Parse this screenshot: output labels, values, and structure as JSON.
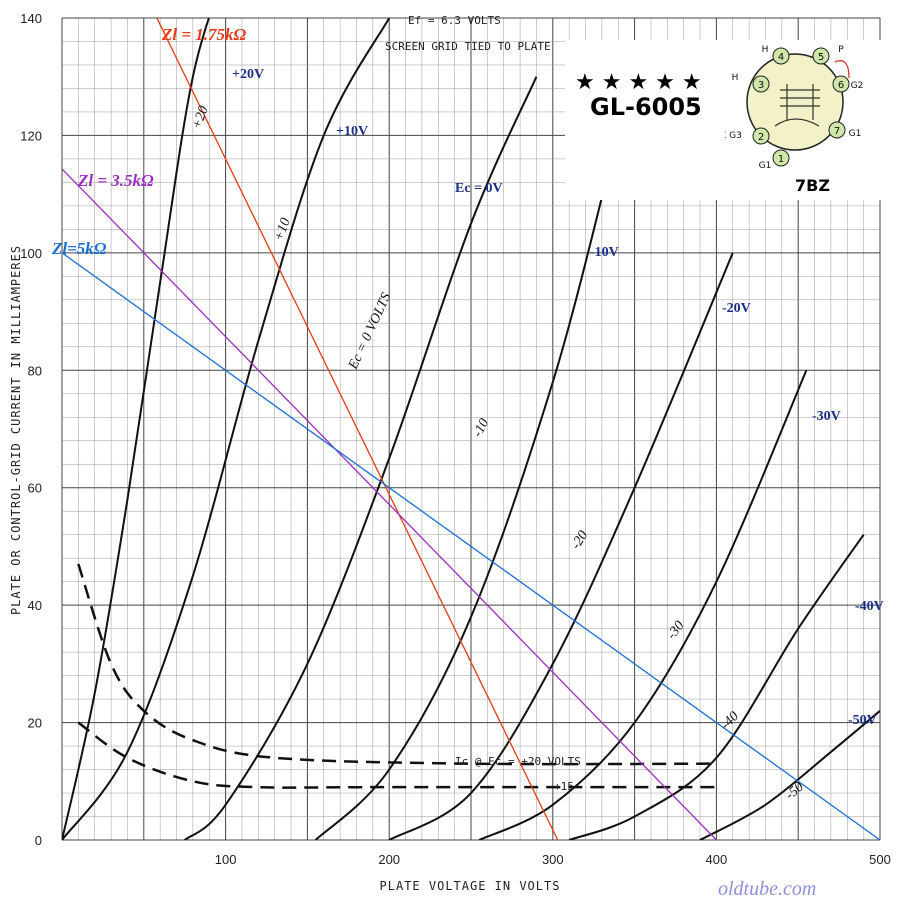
{
  "chart_data": {
    "type": "line",
    "title": "",
    "xlabel": "PLATE VOLTAGE IN VOLTS",
    "ylabel": "PLATE OR CONTROL-GRID CURRENT IN MILLIAMPERES",
    "xlim": [
      0,
      500
    ],
    "ylim": [
      0,
      140
    ],
    "x_ticks": [
      "100",
      "200",
      "300",
      "400",
      "500"
    ],
    "y_ticks": [
      "0",
      "20",
      "40",
      "60",
      "80",
      "100",
      "120",
      "140"
    ],
    "grid": true,
    "notes": [
      "Ef = 6.3 VOLTS",
      "SCREEN GRID TIED TO PLATE"
    ],
    "series": [
      {
        "name": "+20V",
        "inline_label": "+20",
        "x": [
          0,
          20,
          40,
          60,
          80,
          100
        ],
        "y": [
          0,
          25,
          58,
          95,
          130,
          148
        ]
      },
      {
        "name": "+10V",
        "inline_label": "+10",
        "x": [
          0,
          40,
          80,
          120,
          160,
          200
        ],
        "y": [
          0,
          15,
          45,
          85,
          120,
          140
        ]
      },
      {
        "name": "Ec = 0V",
        "inline_label": "Ec = 0 VOLTS",
        "x": [
          75,
          100,
          150,
          200,
          250,
          290
        ],
        "y": [
          0,
          6,
          30,
          65,
          105,
          130
        ]
      },
      {
        "name": "-10V",
        "inline_label": "-10",
        "x": [
          155,
          200,
          250,
          300,
          335
        ],
        "y": [
          0,
          12,
          38,
          78,
          115
        ]
      },
      {
        "name": "-20V",
        "inline_label": "-20",
        "x": [
          200,
          250,
          300,
          350,
          410
        ],
        "y": [
          0,
          8,
          30,
          60,
          100
        ]
      },
      {
        "name": "-30V",
        "inline_label": "-30",
        "x": [
          255,
          300,
          350,
          400,
          455
        ],
        "y": [
          0,
          6,
          20,
          44,
          80
        ]
      },
      {
        "name": "-40V",
        "inline_label": "-40",
        "x": [
          310,
          350,
          400,
          450,
          490
        ],
        "y": [
          0,
          4,
          14,
          36,
          52
        ]
      },
      {
        "name": "-50V",
        "inline_label": "-50",
        "x": [
          390,
          430,
          470,
          500
        ],
        "y": [
          0,
          6,
          15,
          22
        ]
      }
    ],
    "grid_current": [
      {
        "label": "Ic @ Ec = +20 VOLTS",
        "x": [
          10,
          30,
          50,
          80,
          130,
          250,
          400
        ],
        "y": [
          47,
          30,
          22,
          17,
          14,
          13,
          13
        ]
      },
      {
        "label": "+15",
        "x": [
          10,
          40,
          80,
          120,
          200,
          400
        ],
        "y": [
          20,
          14,
          10,
          9,
          9,
          9
        ]
      }
    ],
    "load_lines": [
      {
        "name": "Zl = 1.75kΩ",
        "color": "#e83a14",
        "x": [
          58,
          303
        ],
        "y": [
          140,
          0
        ]
      },
      {
        "name": "Zl = 3.5kΩ",
        "color": "#9b2fc0",
        "x": [
          0,
          400
        ],
        "y": [
          114.3,
          0
        ]
      },
      {
        "name": "Zl=5kΩ",
        "color": "#1a6fd6",
        "x": [
          0,
          500
        ],
        "y": [
          100,
          0
        ]
      }
    ]
  },
  "tube": {
    "stars": "★★★★★",
    "name": "GL-6005",
    "base": "7BZ",
    "pins": [
      {
        "num": "1",
        "label": "G1"
      },
      {
        "num": "2",
        "label": "X G3"
      },
      {
        "num": "3",
        "label": "H"
      },
      {
        "num": "4",
        "label": "H"
      },
      {
        "num": "5",
        "label": "P"
      },
      {
        "num": "6",
        "label": "G2"
      },
      {
        "num": "7",
        "label": "G1"
      }
    ]
  },
  "watermark": "oldtube.com",
  "colors": {
    "curve": "#111111",
    "label_blue": "#1a2f8a",
    "grid_minor": "#9a9a9a",
    "grid_major": "#444444"
  }
}
